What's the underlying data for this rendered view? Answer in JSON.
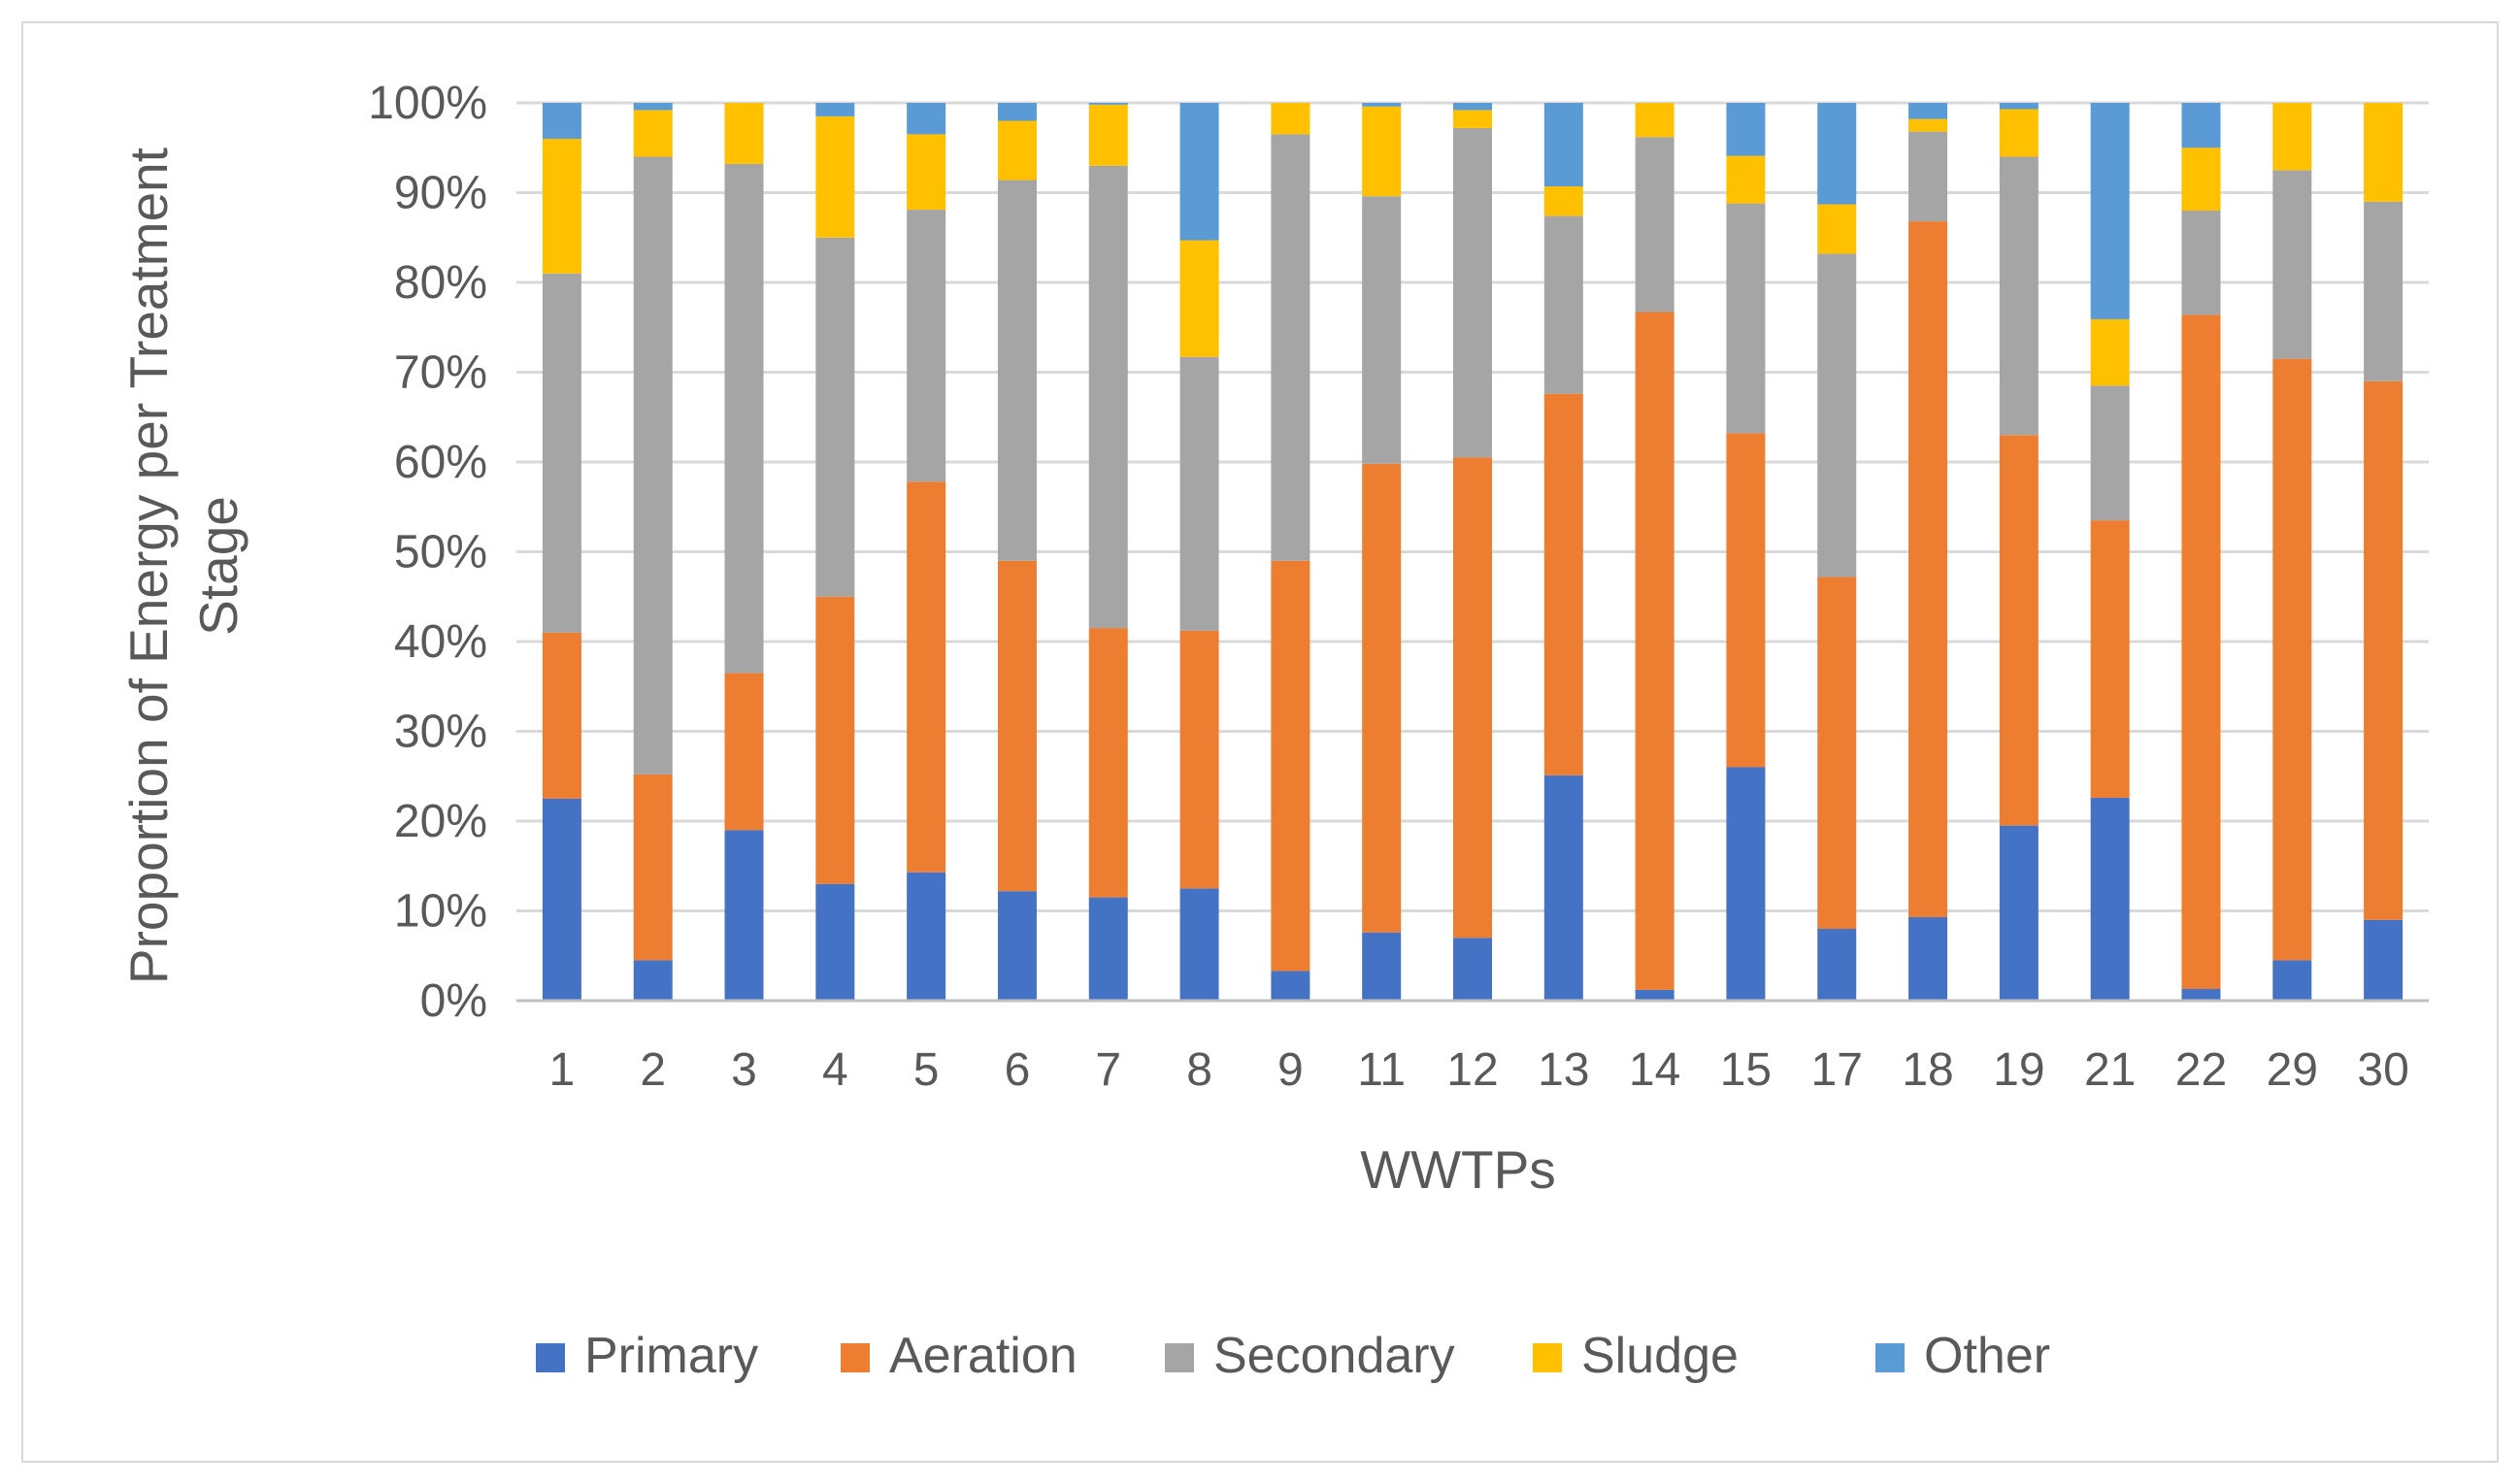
{
  "chart_data": {
    "type": "bar",
    "stacked": true,
    "title": "",
    "xlabel": "WWTPs",
    "ylabel_lines": [
      "Proportion of Energy per Treatment",
      "Stage"
    ],
    "ylim": [
      0,
      100
    ],
    "yticks": [
      "0%",
      "10%",
      "20%",
      "30%",
      "40%",
      "50%",
      "60%",
      "70%",
      "80%",
      "90%",
      "100%"
    ],
    "gridlines": true,
    "legend_position": "bottom",
    "categories": [
      "1",
      "2",
      "3",
      "4",
      "5",
      "6",
      "7",
      "8",
      "9",
      "11",
      "12",
      "13",
      "14",
      "15",
      "17",
      "18",
      "19",
      "21",
      "22",
      "29",
      "30"
    ],
    "series": [
      {
        "name": "Primary",
        "color": "#4472C4",
        "values": [
          22.5,
          4.5,
          19,
          13,
          14.3,
          12.2,
          11.5,
          12.5,
          3.3,
          7.6,
          7,
          25.1,
          1.2,
          26,
          8,
          9.3,
          19.5,
          22.6,
          1.3,
          4.5,
          9
        ]
      },
      {
        "name": "Aeration",
        "color": "#ED7D31",
        "values": [
          18.5,
          20.7,
          17.5,
          32,
          43.5,
          36.8,
          30,
          28.7,
          45.7,
          52.2,
          53.5,
          42.5,
          75.5,
          37.2,
          39.2,
          77.5,
          43.5,
          30.9,
          75.1,
          67,
          60
        ]
      },
      {
        "name": "Secondary",
        "color": "#A5A5A5",
        "values": [
          40,
          68.8,
          56.7,
          40,
          30.3,
          42.4,
          51.5,
          30.5,
          47.5,
          29.8,
          36.7,
          19.8,
          19.5,
          25.6,
          36,
          10,
          31,
          15,
          11.6,
          21,
          20
        ]
      },
      {
        "name": "Sludge",
        "color": "#FFC000",
        "values": [
          15,
          5.2,
          6.8,
          13.5,
          8.4,
          6.6,
          6.8,
          13,
          3.5,
          10,
          2,
          3.3,
          3.8,
          5.3,
          5.5,
          1.4,
          5.3,
          7.4,
          7,
          7.5,
          11
        ]
      },
      {
        "name": "Other",
        "color": "#5B9BD5",
        "values": [
          4,
          0.8,
          0,
          1.5,
          3.5,
          2,
          0.2,
          15.3,
          0,
          0.4,
          0.8,
          9.3,
          0,
          5.9,
          11.3,
          1.8,
          0.7,
          24.1,
          5,
          0,
          0
        ]
      }
    ]
  }
}
